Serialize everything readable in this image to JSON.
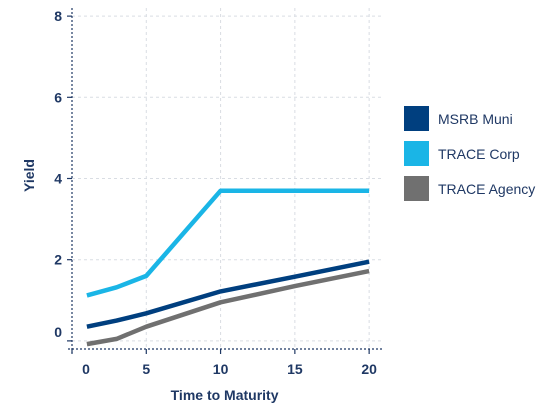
{
  "chart_data": {
    "type": "line",
    "title": "",
    "xlabel": "Time to Maturity",
    "ylabel": "Yield",
    "xlim": [
      0,
      21
    ],
    "ylim": [
      -0.2,
      8.2
    ],
    "x_ticks": [
      0,
      5,
      10,
      15,
      20
    ],
    "y_ticks": [
      0,
      2,
      4,
      6,
      8
    ],
    "grid": true,
    "legend_position": "right",
    "series": [
      {
        "name": "MSRB Muni",
        "color": "#003f7f",
        "points": [
          [
            1,
            0.35
          ],
          [
            3,
            0.5
          ],
          [
            5,
            0.68
          ],
          [
            10,
            1.22
          ],
          [
            15,
            1.58
          ],
          [
            20,
            1.95
          ]
        ]
      },
      {
        "name": "TRACE Corp",
        "color": "#1ab5e6",
        "points": [
          [
            1,
            1.12
          ],
          [
            3,
            1.32
          ],
          [
            5,
            1.6
          ],
          [
            10,
            3.7
          ],
          [
            15,
            3.7
          ],
          [
            20,
            3.7
          ]
        ]
      },
      {
        "name": "TRACE Agency",
        "color": "#707070",
        "points": [
          [
            1,
            -0.08
          ],
          [
            3,
            0.05
          ],
          [
            5,
            0.35
          ],
          [
            10,
            0.95
          ],
          [
            15,
            1.35
          ],
          [
            20,
            1.72
          ]
        ]
      }
    ]
  }
}
